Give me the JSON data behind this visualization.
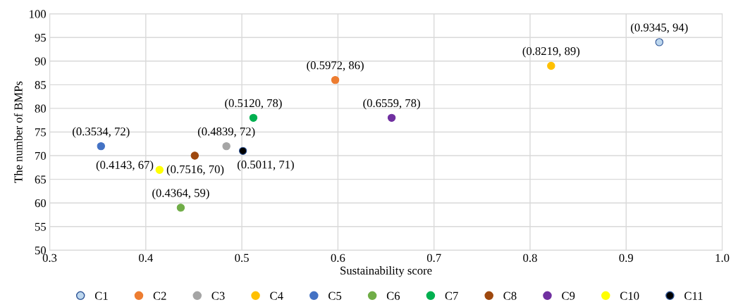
{
  "chart_data": {
    "type": "scatter",
    "xlabel": "Sustainability score",
    "ylabel": "The number of BMPs",
    "xlim": [
      0.3,
      1.0
    ],
    "xticks": [
      0.3,
      0.4,
      0.5,
      0.6,
      0.7,
      0.8,
      0.9,
      {
        "value": 1.0,
        "label": "1.0"
      }
    ],
    "ylim": [
      50,
      100
    ],
    "yticks": [
      50,
      55,
      60,
      65,
      70,
      75,
      80,
      85,
      90,
      95,
      100
    ],
    "grid": true,
    "legend": "bottom",
    "marker": "circle",
    "series": [
      {
        "name": "C1",
        "color": "#bdd7ee",
        "x": [
          0.9345
        ],
        "values": [
          94
        ],
        "value_labels": [
          "(0.9345, 94)"
        ]
      },
      {
        "name": "C2",
        "color": "#ed7d31",
        "x": [
          0.5972
        ],
        "values": [
          86
        ],
        "value_labels": [
          "(0.5972, 86)"
        ]
      },
      {
        "name": "C3",
        "color": "#a5a5a5",
        "x": [
          0.4839
        ],
        "values": [
          72
        ],
        "value_labels": [
          "(0.4839, 72)"
        ]
      },
      {
        "name": "C4",
        "color": "#ffc000",
        "x": [
          0.8219
        ],
        "values": [
          89
        ],
        "value_labels": [
          "(0.8219, 89)"
        ]
      },
      {
        "name": "C5",
        "color": "#4472c4",
        "x": [
          0.3534
        ],
        "values": [
          72
        ],
        "value_labels": [
          "(0.3534, 72)"
        ]
      },
      {
        "name": "C6",
        "color": "#70ad47",
        "x": [
          0.4364
        ],
        "values": [
          59
        ],
        "value_labels": [
          "(0.4364, 59)"
        ]
      },
      {
        "name": "C7",
        "color": "#00b050",
        "x": [
          0.512
        ],
        "values": [
          78
        ],
        "value_labels": [
          "(0.5120, 78)"
        ]
      },
      {
        "name": "C8",
        "color": "#9e480e",
        "x": [
          0.451
        ],
        "values": [
          70
        ],
        "value_labels": [
          "(0.7516, 70)"
        ]
      },
      {
        "name": "C9",
        "color": "#7030a0",
        "x": [
          0.6559
        ],
        "values": [
          78
        ],
        "value_labels": [
          "(0.6559, 78)"
        ]
      },
      {
        "name": "C10",
        "color": "#ffff00",
        "x": [
          0.4143
        ],
        "values": [
          67
        ],
        "value_labels": [
          "(0.4143, 67)"
        ]
      },
      {
        "name": "C11",
        "color": "#000000",
        "x": [
          0.5011
        ],
        "values": [
          71
        ],
        "value_labels": [
          "(0.5011, 71)"
        ]
      }
    ]
  }
}
